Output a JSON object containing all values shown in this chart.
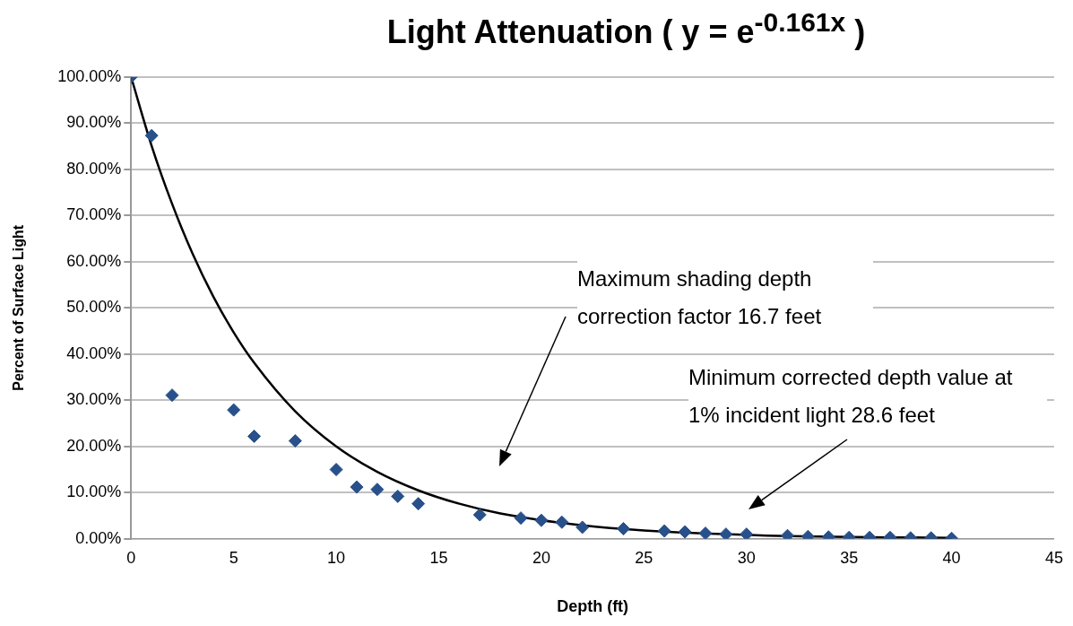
{
  "chart_data": {
    "type": "scatter",
    "title": "Light Attenuation ( y = e$^{-0.161x}$ )",
    "xlabel": "Depth (ft)",
    "ylabel": "Percent of Surface Light",
    "series": [
      {
        "color": "#28508a",
        "marker": "diamond",
        "x": [
          0,
          1,
          2,
          5,
          6,
          8,
          10,
          11,
          12,
          13,
          14,
          17,
          19,
          20,
          21,
          22,
          24,
          26,
          27,
          28,
          29,
          30,
          32,
          33,
          34,
          35,
          36,
          37,
          38,
          39,
          40
        ],
        "values": [
          100,
          87.3,
          31.1,
          27.9,
          22.2,
          21.2,
          15.0,
          11.2,
          10.7,
          9.2,
          7.6,
          5.2,
          4.5,
          4.0,
          3.6,
          2.5,
          2.2,
          1.7,
          1.5,
          1.2,
          1.0,
          1.0,
          0.7,
          0.5,
          0.4,
          0.3,
          0.3,
          0.3,
          0.2,
          0.2,
          0.1
        ]
      },
      {
        "type": "line",
        "color": "#000000",
        "marker": "none",
        "x": [
          0,
          1,
          2,
          3,
          4,
          5,
          6,
          8,
          10,
          12,
          14,
          16,
          18,
          22,
          25,
          31,
          40
        ],
        "values": [
          100,
          85.1,
          72.5,
          61.7,
          52.5,
          44.7,
          38.1,
          27.6,
          20.0,
          14.5,
          10.5,
          7.6,
          5.5,
          2.9,
          1.8,
          0.7,
          0.2
        ]
      }
    ],
    "xlim": [
      0,
      45
    ],
    "xticks": [
      0,
      5,
      10,
      15,
      20,
      25,
      30,
      35,
      40,
      45
    ],
    "ylim": [
      0,
      100
    ],
    "yticks": [
      {
        "value": 0,
        "label": "0.00%"
      },
      {
        "value": 10,
        "label": "10.00%"
      },
      {
        "value": 20,
        "label": "20.00%"
      },
      {
        "value": 30,
        "label": "30.00%"
      },
      {
        "value": 40,
        "label": "40.00%"
      },
      {
        "value": 50,
        "label": "50.00%"
      },
      {
        "value": 60,
        "label": "60.00%"
      },
      {
        "value": 70,
        "label": "70.00%"
      },
      {
        "value": 80,
        "label": "80.00%"
      },
      {
        "value": 90,
        "label": "90.00%"
      },
      {
        "value": 100,
        "label": "100.00%"
      }
    ],
    "grid": "y",
    "legend": false,
    "annotations": [
      "Maximum shading depth correction factor 16.7 feet",
      "Minimum corrected depth value at 1% incident light 28.6 feet"
    ]
  }
}
